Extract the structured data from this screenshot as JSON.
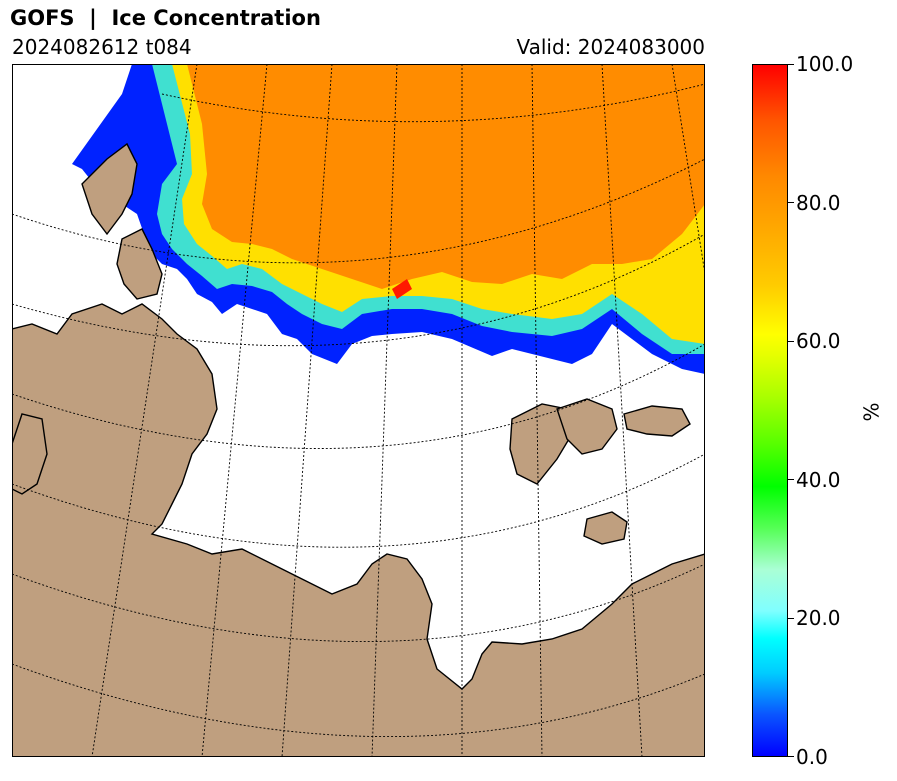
{
  "header": {
    "title": "GOFS  |  Ice Concentration",
    "run": "2024082612 t084",
    "valid": "Valid: 2024083000"
  },
  "colorbar": {
    "label": "%",
    "ticks": [
      "0.0",
      "20.0",
      "40.0",
      "60.0",
      "80.0",
      "100.0"
    ],
    "min": 0,
    "max": 100
  },
  "colors": {
    "land": "#bf9f7f",
    "ocean": "#ffffff",
    "ice_high": "#ff8c00",
    "ice_edge": "#0000ff"
  }
}
